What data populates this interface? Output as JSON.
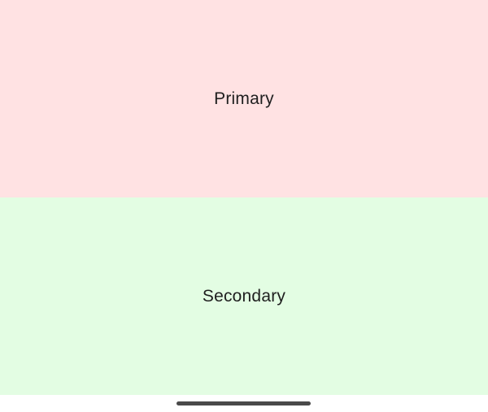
{
  "panes": {
    "primary": {
      "label": "Primary",
      "background": "#ffe2e3"
    },
    "secondary": {
      "label": "Secondary",
      "background": "#e3fde3"
    }
  },
  "navigation": {
    "home_indicator_color": "#4a4a4a"
  }
}
